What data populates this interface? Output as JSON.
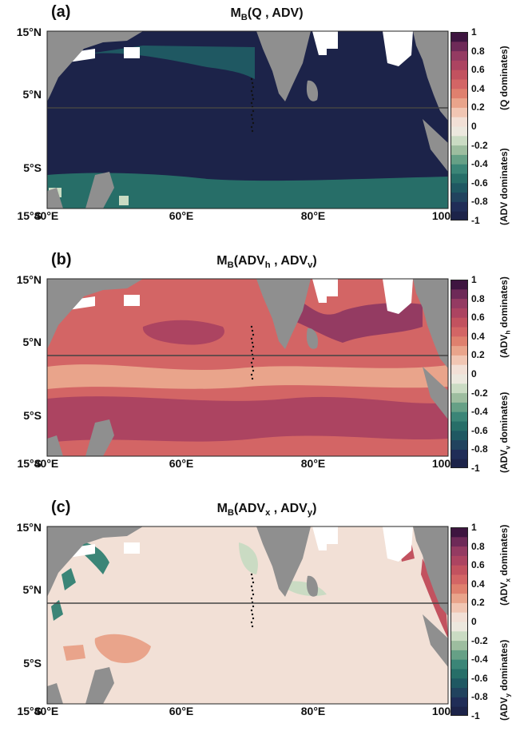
{
  "colors": {
    "land": "#8f8f8f",
    "equator_line": "#444444",
    "colormap": [
      "#1c2349",
      "#202d57",
      "#21435e",
      "#1f5862",
      "#276e68",
      "#3b8577",
      "#66a086",
      "#9dbd9f",
      "#cadbc3",
      "#ece8de",
      "#f2e0d6",
      "#f1c6b3",
      "#e9a48b",
      "#df806e",
      "#d36565",
      "#c2525f",
      "#ac4461",
      "#943b62",
      "#6e2a58",
      "#3e1540"
    ]
  },
  "axes": {
    "x_ticks": [
      "40°E",
      "60°E",
      "80°E",
      "100°E"
    ],
    "y_ticks": [
      "15°N",
      "5°N",
      "5°S",
      "15°S"
    ],
    "colorbar_ticks": [
      "1",
      "0.8",
      "0.6",
      "0.4",
      "0.2",
      "0",
      "-0.2",
      "-0.4",
      "-0.6",
      "-0.8",
      "-1"
    ]
  },
  "panels": [
    {
      "letter": "(a)",
      "title_main": "M",
      "title_sub": "B",
      "title_args": [
        {
          "t": "(Q , ADV)"
        }
      ],
      "cb_top": [
        {
          "t": "(Q dominates)"
        }
      ],
      "cb_bottom": [
        {
          "t": "(ADV dominates)"
        }
      ],
      "background_value": -0.95,
      "regions": [
        {
          "name": "arabian-sea-north",
          "value": -0.7
        },
        {
          "name": "southern-band",
          "value": -0.6
        },
        {
          "name": "madagascar-patch",
          "value": -0.2
        }
      ]
    },
    {
      "letter": "(b)",
      "title_main": "M",
      "title_sub": "B",
      "title_args": [
        {
          "t": "(ADV"
        },
        {
          "sub": "h"
        },
        {
          "t": " , ADV"
        },
        {
          "sub": "v"
        },
        {
          "t": ")"
        }
      ],
      "cb_top": [
        {
          "t": "(ADV"
        },
        {
          "sub": "h"
        },
        {
          "t": " dominates)"
        }
      ],
      "cb_bottom": [
        {
          "t": "(ADV"
        },
        {
          "sub": "v"
        },
        {
          "t": " dominates)"
        }
      ],
      "background_value": 0.45,
      "regions": [
        {
          "name": "bay-of-bengal-north",
          "value": 0.7
        },
        {
          "name": "central-arabian-sea",
          "value": 0.65
        },
        {
          "name": "equatorial-band",
          "value": 0.25
        },
        {
          "name": "southern-band",
          "value": 0.65
        }
      ]
    },
    {
      "letter": "(c)",
      "title_main": "M",
      "title_sub": "B",
      "title_args": [
        {
          "t": "(ADV"
        },
        {
          "sub": "x"
        },
        {
          "t": " , ADV"
        },
        {
          "sub": "y"
        },
        {
          "t": ")"
        }
      ],
      "cb_top": [
        {
          "t": "(ADV"
        },
        {
          "sub": "x"
        },
        {
          "t": " dominates)"
        }
      ],
      "cb_bottom": [
        {
          "t": "(ADV"
        },
        {
          "sub": "y"
        },
        {
          "t": " dominates)"
        }
      ],
      "background_value": 0.05,
      "regions": [
        {
          "name": "somali-coast",
          "value": -0.5
        },
        {
          "name": "east-boundary",
          "value": 0.5
        },
        {
          "name": "southwest-patches",
          "value": 0.25
        },
        {
          "name": "laccadive-sea",
          "value": -0.2
        }
      ]
    }
  ]
}
